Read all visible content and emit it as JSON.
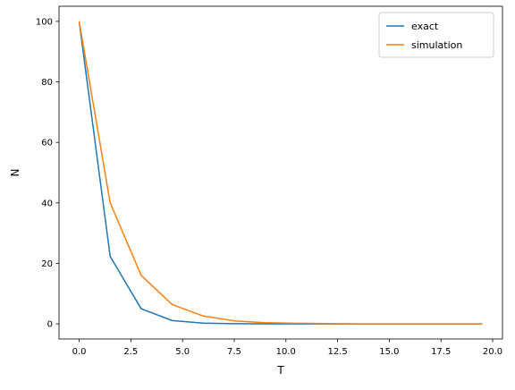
{
  "chart_data": {
    "type": "line",
    "title": "",
    "xlabel": "T",
    "ylabel": "N",
    "xlim": [
      -0.975,
      20.475
    ],
    "ylim": [
      -5,
      105
    ],
    "grid": false,
    "legend_position": "top-right",
    "x_ticks": [
      0.0,
      2.5,
      5.0,
      7.5,
      10.0,
      12.5,
      15.0,
      17.5,
      20.0
    ],
    "x_tick_labels": [
      "0.0",
      "2.5",
      "5.0",
      "7.5",
      "10.0",
      "12.5",
      "15.0",
      "17.5",
      "20.0"
    ],
    "y_ticks": [
      0,
      20,
      40,
      60,
      80,
      100
    ],
    "y_tick_labels": [
      "0",
      "20",
      "40",
      "60",
      "80",
      "100"
    ],
    "x": [
      0.0,
      1.5,
      3.0,
      4.5,
      6.0,
      7.5,
      9.0,
      10.5,
      12.0,
      13.5,
      15.0,
      16.5,
      18.0,
      19.5
    ],
    "series": [
      {
        "name": "exact",
        "color": "#1f77b4",
        "values": [
          100,
          22.3,
          5.0,
          1.1,
          0.25,
          0.06,
          0.01,
          0.0,
          0.0,
          0.0,
          0.0,
          0.0,
          0.0,
          0.0
        ]
      },
      {
        "name": "simulation",
        "color": "#ff7f0e",
        "values": [
          100,
          40.0,
          16.0,
          6.4,
          2.6,
          1.0,
          0.4,
          0.2,
          0.1,
          0.0,
          0.0,
          0.0,
          0.0,
          0.0
        ]
      }
    ]
  }
}
